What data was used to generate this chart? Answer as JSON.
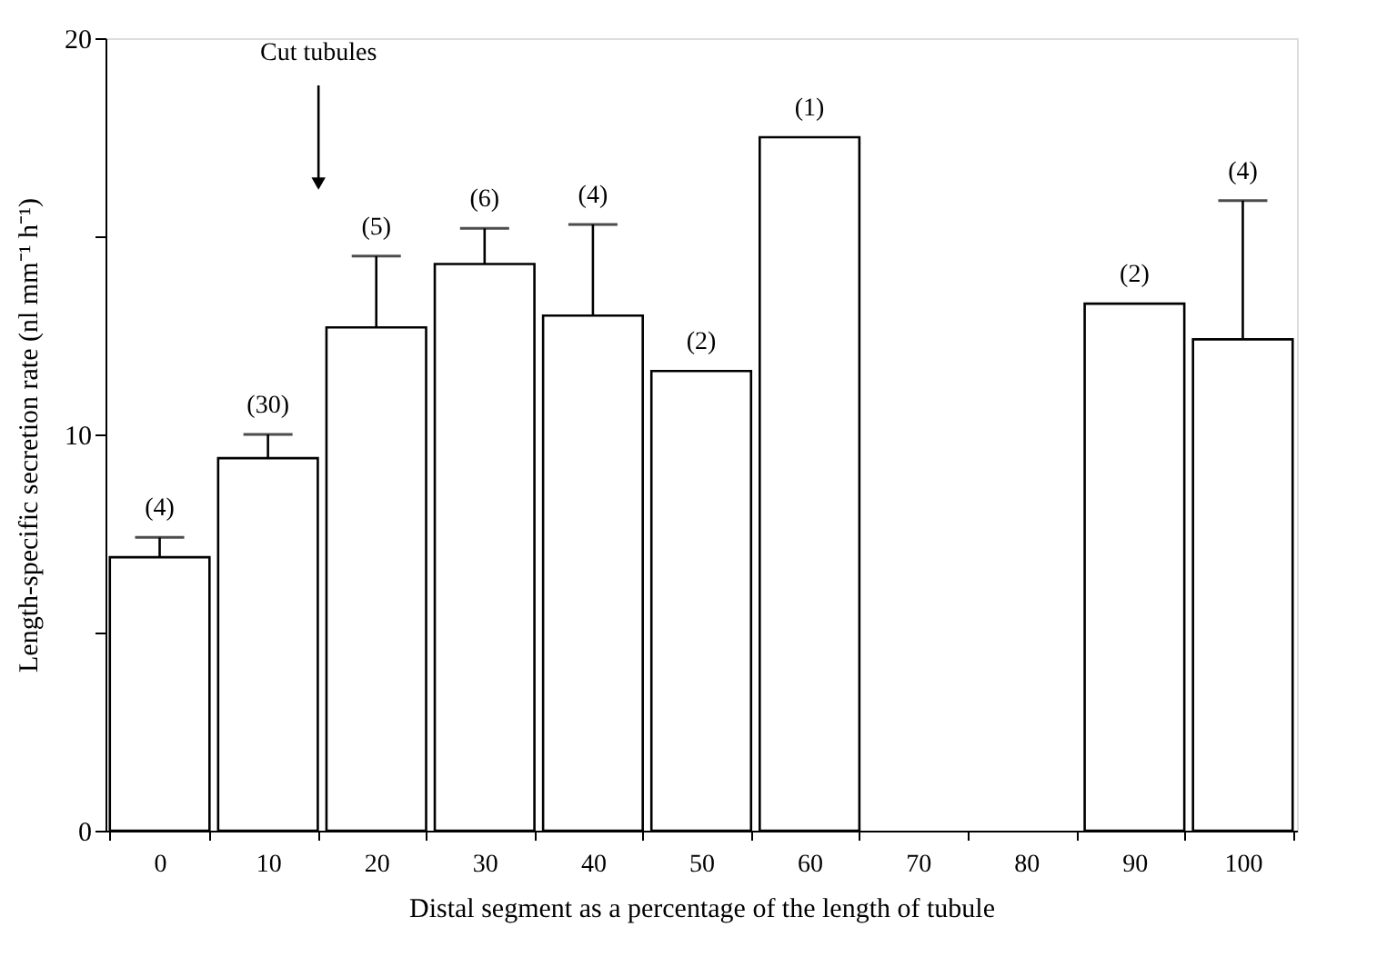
{
  "chart_data": {
    "type": "bar",
    "xlabel": "Distal segment as a percentage of the length of tubule",
    "ylabel": "Length-specific secretion rate (nl mm⁻¹ h⁻¹)",
    "categories": [
      "0",
      "10",
      "20",
      "30",
      "40",
      "50",
      "60",
      "70",
      "80",
      "90",
      "100"
    ],
    "values": [
      6.9,
      9.4,
      12.7,
      14.3,
      13.0,
      11.6,
      17.5,
      null,
      null,
      13.3,
      12.4
    ],
    "errors": [
      [
        6.9,
        7.4
      ],
      [
        9.4,
        10.0
      ],
      [
        12.7,
        14.5
      ],
      [
        14.3,
        15.2
      ],
      [
        13.0,
        15.3
      ],
      null,
      null,
      null,
      null,
      null,
      [
        12.4,
        15.9
      ]
    ],
    "color": "#ffffff",
    "ylim": [
      0,
      20
    ],
    "yticks": [
      0,
      {
        "value": 5,
        "label": null
      },
      10,
      {
        "value": 15,
        "label": null
      },
      20
    ],
    "grid": false,
    "annotations": [
      "Cut tubules",
      {
        "text": "(4)",
        "x": "0",
        "y": 7.4
      },
      {
        "text": "(30)",
        "x": "10",
        "y": 10.0
      },
      {
        "text": "(5)",
        "x": "20",
        "y": 14.5
      },
      {
        "text": "(6)",
        "x": "30",
        "y": 15.2
      },
      {
        "text": "(4)",
        "x": "40",
        "y": 15.3
      },
      {
        "text": "(2)",
        "x": "50",
        "y": 11.6
      },
      {
        "text": "(1)",
        "x": "60",
        "y": 17.5
      },
      {
        "text": "(2)",
        "x": "90",
        "y": 13.3
      },
      {
        "text": "(4)",
        "x": "100",
        "y": 15.9
      }
    ]
  }
}
